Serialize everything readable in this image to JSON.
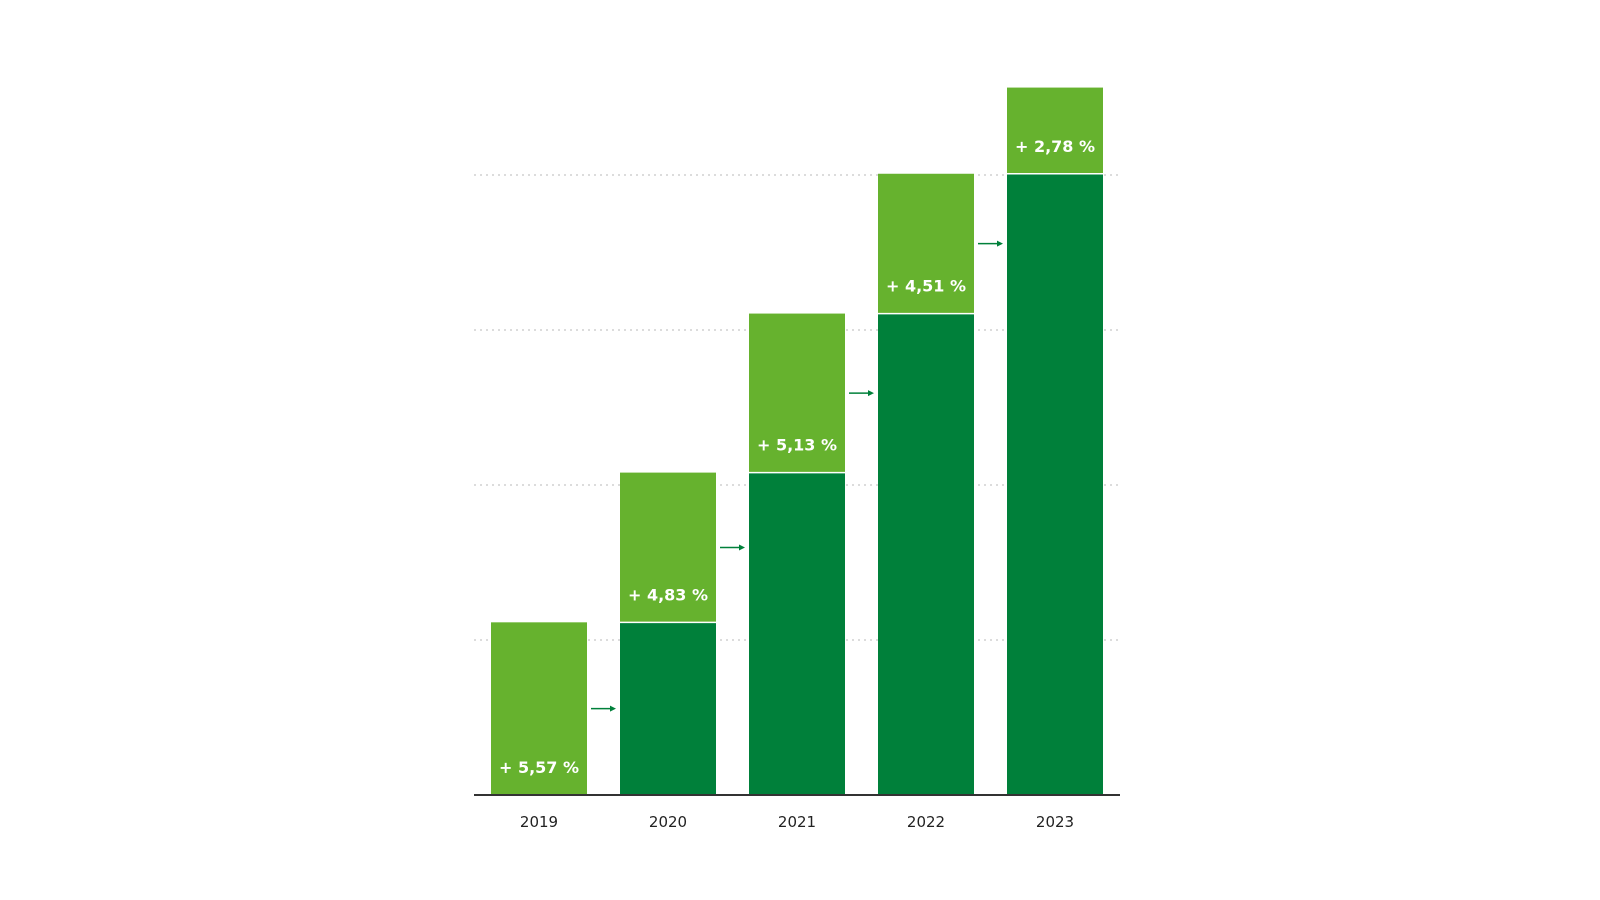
{
  "chart_data": {
    "type": "bar",
    "stacked": true,
    "categories": [
      "2019",
      "2020",
      "2021",
      "2022",
      "2023"
    ],
    "series": [
      {
        "role": "base",
        "values": [
          0,
          5.57,
          10.4,
          15.53,
          20.04
        ]
      },
      {
        "role": "increase",
        "values": [
          5.57,
          4.83,
          5.13,
          4.51,
          2.78
        ]
      }
    ],
    "data_labels": [
      "+ 5,57 %",
      "+ 4,83 %",
      "+ 5,13 %",
      "+ 4,51 %",
      "+ 2,78 %"
    ],
    "ylim": [
      0,
      23
    ],
    "y_gridlines": [
      5,
      10,
      15,
      20
    ],
    "grid": "horizontal dotted",
    "connector_arrows": true,
    "colors": {
      "base": "#00803a",
      "increase": "#66b22e",
      "label_text": "#ffffff",
      "axis": "#333333",
      "grid": "#d0d0d0",
      "tick_text": "#222222"
    }
  }
}
